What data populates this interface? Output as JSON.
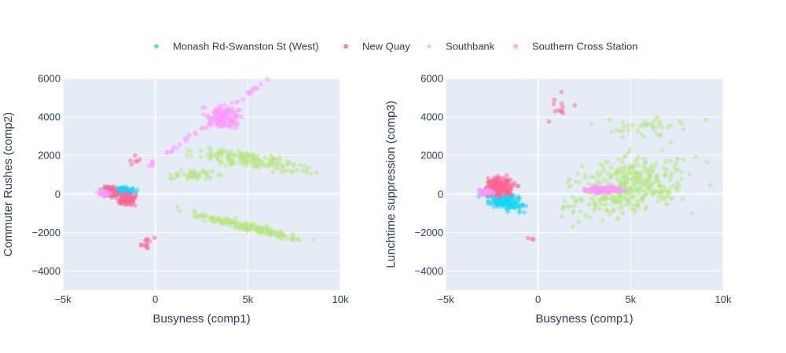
{
  "chart_data": {
    "type": "scatter",
    "legend": {
      "placement": "top-center",
      "orientation": "horizontal",
      "entries": [
        {
          "name": "Monash Rd-Swanston St (West)",
          "color": "#19d3f3",
          "symbol": "diamond"
        },
        {
          "name": "New Quay",
          "color": "#ff6692",
          "symbol": "circle"
        },
        {
          "name": "Southbank",
          "color": "#b6e880",
          "symbol": "diamond"
        },
        {
          "name": "Southern Cross Station",
          "color": "#ff97ff",
          "symbol": "circle"
        }
      ]
    },
    "plot_background": "#e5ecf6",
    "grid": true,
    "marker_opacity": 0.5,
    "panels": [
      {
        "xlabel": "Busyness (comp1)",
        "ylabel": "Commuter Rushes (comp2)",
        "xlim": [
          -5000,
          10000
        ],
        "ylim": [
          -5000,
          6000
        ],
        "x_ticks": [
          -5000,
          0,
          5000,
          10000
        ],
        "x_tick_labels": [
          "−5k",
          "0",
          "5k",
          "10k"
        ],
        "y_ticks": [
          -4000,
          -2000,
          0,
          2000,
          4000,
          6000
        ],
        "y_tick_labels": [
          "−4000",
          "−2000",
          "0",
          "2000",
          "4000",
          "6000"
        ],
        "series": [
          {
            "name": "Monash Rd-Swanston St (West)",
            "clusters": [
              {
                "count": 140,
                "x": [
                  -3300,
                  -500
                ],
                "y": [
                  -150,
                  450
                ]
              }
            ]
          },
          {
            "name": "New Quay",
            "clusters": [
              {
                "count": 110,
                "x": [
                  -3100,
                  -1800
                ],
                "y": [
                  -300,
                  500
                ]
              },
              {
                "count": 80,
                "x": [
                  -2400,
                  -800
                ],
                "y": [
                  -800,
                  200
                ]
              },
              {
                "count": 12,
                "x": [
                  -1500,
                  500
                ],
                "y": [
                  -3300,
                  -1900
                ]
              },
              {
                "count": 6,
                "x": [
                  -2000,
                  -500
                ],
                "y": [
                  600,
                  2600
                ]
              }
            ]
          },
          {
            "name": "Southbank",
            "clusters": [
              {
                "count": 160,
                "x": [
                  400,
                  10000
                ],
                "y": [
                  1000,
                  2400
                ],
                "tilt_pivot": 5500,
                "slope": -0.15
              },
              {
                "count": 180,
                "x": [
                  0,
                  10000
                ],
                "y": [
                  -600,
                  -2000
                ],
                "tilt": "down",
                "slope": -0.35
              },
              {
                "count": 50,
                "x": [
                  0,
                  4500
                ],
                "y": [
                  600,
                  1400
                ]
              }
            ]
          },
          {
            "name": "Southern Cross Station",
            "clusters": [
              {
                "count": 120,
                "x": [
                  2100,
                  5300
                ],
                "y": [
                  3000,
                  5000
                ]
              },
              {
                "count": 40,
                "x": [
                  -500,
                  6200
                ],
                "y": [
                  1300,
                  6000
                ],
                "line": true
              },
              {
                "count": 60,
                "x": [
                  -3300,
                  -2300
                ],
                "y": [
                  -150,
                  250
                ]
              }
            ]
          }
        ]
      },
      {
        "xlabel": "Busyness (comp1)",
        "ylabel": "Lunchtime suppression (comp3)",
        "xlim": [
          -5000,
          10000
        ],
        "ylim": [
          -5000,
          6000
        ],
        "x_ticks": [
          -5000,
          0,
          5000,
          10000
        ],
        "x_tick_labels": [
          "−5k",
          "0",
          "5k",
          "10k"
        ],
        "y_ticks": [
          -4000,
          -2000,
          0,
          2000,
          4000,
          6000
        ],
        "y_tick_labels": [
          "−4000",
          "−2000",
          "0",
          "2000",
          "4000",
          "6000"
        ],
        "series": [
          {
            "name": "Monash Rd-Swanston St (West)",
            "clusters": [
              {
                "count": 150,
                "x": [
                  -3600,
                  0
                ],
                "y": [
                  -1100,
                  400
                ],
                "slope": -0.2
              }
            ]
          },
          {
            "name": "New Quay",
            "clusters": [
              {
                "count": 170,
                "x": [
                  -3400,
                  -800
                ],
                "y": [
                  -500,
                  1300
                ]
              },
              {
                "count": 12,
                "x": [
                  -1000,
                  3500
                ],
                "y": [
                  3200,
                  5700
                ]
              },
              {
                "count": 3,
                "x": [
                  -3000,
                  1500
                ],
                "y": [
                  -2800,
                  -2000
                ]
              }
            ]
          },
          {
            "name": "Southbank",
            "clusters": [
              {
                "count": 380,
                "x": [
                  -400,
                  10000
                ],
                "y": [
                  -2000,
                  2800
                ],
                "slope": 0.2
              },
              {
                "count": 40,
                "x": [
                  2000,
                  10000
                ],
                "y": [
                  2500,
                  4500
                ]
              }
            ]
          },
          {
            "name": "Southern Cross Station",
            "clusters": [
              {
                "count": 150,
                "x": [
                  1800,
                  5200
                ],
                "y": [
                  -50,
                  500
                ]
              },
              {
                "count": 30,
                "x": [
                  -3500,
                  -2200
                ],
                "y": [
                  -100,
                  300
                ]
              }
            ]
          }
        ]
      }
    ]
  }
}
